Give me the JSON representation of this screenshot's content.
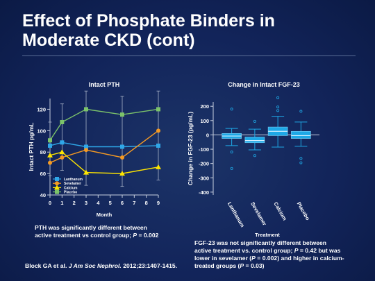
{
  "slide": {
    "title_line1": "Effect of Phosphate Binders in",
    "title_line2": "Moderate CKD (cont)"
  },
  "notes": {
    "pth_line1": "PTH was significantly different between",
    "pth_line2_pre": "active treatment vs control group; ",
    "pth_p_symbol": "P",
    "pth_line2_post": " = 0.002",
    "fgf_line1": "FGF-23 was not significantly different between",
    "fgf_line2_pre": "active treatment vs. control group; ",
    "fgf_p1_symbol": "P",
    "fgf_line2_post": " = 0.42 but was",
    "fgf_line3_pre": "lower in sevelamer (",
    "fgf_p2_symbol": "P",
    "fgf_line3_post": " = 0.002) and higher in calcium-",
    "fgf_line4_pre": "treated groups (",
    "fgf_p3_symbol": "P",
    "fgf_line4_post": " = 0.03)"
  },
  "citation": {
    "authors": "Block GA et al. ",
    "journal": "J Am Soc Nephrol.",
    "details": " 2012;23:1407-1415."
  },
  "chart_data": [
    {
      "type": "line",
      "title": "Intact PTH",
      "xlabel": "Month",
      "ylabel": "Intact PTH pg/mL",
      "x_ticks": [
        0,
        1,
        2,
        3,
        4,
        5,
        6,
        7,
        8,
        9
      ],
      "y_ticks": [
        40,
        60,
        80,
        100,
        120
      ],
      "xlim": [
        0,
        9
      ],
      "ylim": [
        40,
        130
      ],
      "legend_position": "bottom-left",
      "x": [
        0,
        1,
        3,
        6,
        9
      ],
      "series": [
        {
          "name": "Lanthanum",
          "color": "#2fa7e8",
          "marker": "square",
          "values": [
            86,
            89,
            85,
            85,
            86
          ]
        },
        {
          "name": "Sevelamer",
          "color": "#f59a23",
          "marker": "circle",
          "values": [
            70,
            75,
            82,
            75,
            100
          ]
        },
        {
          "name": "Calcium",
          "color": "#ffe600",
          "marker": "triangle",
          "values": [
            77,
            80,
            61,
            60,
            66
          ]
        },
        {
          "name": "Placebo",
          "color": "#7cc36a",
          "marker": "square",
          "values": [
            91,
            108,
            120,
            115,
            120
          ]
        }
      ]
    },
    {
      "type": "box",
      "title": "Change in Intact FGF-23",
      "xlabel": "Treatment",
      "ylabel": "Change in FGF-23 (pg/mL)",
      "y_ticks": [
        -400,
        -300,
        -200,
        -100,
        0,
        100,
        200
      ],
      "ylim": [
        -420,
        230
      ],
      "categories": [
        "Lanthanum",
        "Sevelamer",
        "Calcium",
        "Placebo"
      ],
      "color": "#1ea8e6",
      "boxes": [
        {
          "min": -75,
          "q1": -25,
          "median": -8,
          "q3": 10,
          "max": 45,
          "outliers": [
            180,
            -120,
            -235
          ]
        },
        {
          "min": -105,
          "q1": -55,
          "median": -40,
          "q3": -15,
          "max": 40,
          "outliers": [
            95,
            -145
          ]
        },
        {
          "min": -85,
          "q1": -5,
          "median": 25,
          "q3": 55,
          "max": 130,
          "outliers": [
            170,
            195,
            260
          ]
        },
        {
          "min": -80,
          "q1": -25,
          "median": -5,
          "q3": 25,
          "max": 90,
          "outliers": [
            165,
            -165,
            -195
          ]
        }
      ]
    }
  ]
}
